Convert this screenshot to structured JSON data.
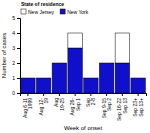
{
  "chart_data": {
    "type": "bar",
    "stacked": true,
    "title": "State of residence",
    "xlabel": "Week of onset",
    "ylabel": "Number of cases",
    "categories": [
      "Aug 6-11\n1999",
      "Aug 12-\n19",
      "Aug\n19-25",
      "Aug 26-\nSep 1",
      "Sep\n2-8",
      "Sep 9-15\nSep 2",
      "Sep 16-22\nSep 13",
      "Sep 23+\nSep 13+"
    ],
    "series": [
      {
        "name": "New York",
        "color": "#1010cc",
        "values": [
          1,
          1,
          2,
          3,
          1,
          2,
          2,
          1
        ]
      },
      {
        "name": "New Jersey",
        "color": "#ffffff",
        "values": [
          0,
          0,
          0,
          1,
          0,
          0,
          2,
          0
        ]
      }
    ],
    "ylim": [
      0,
      5
    ],
    "yticks": [
      0,
      1,
      2,
      3,
      4,
      5
    ],
    "grid": false,
    "legend": "upper left"
  }
}
